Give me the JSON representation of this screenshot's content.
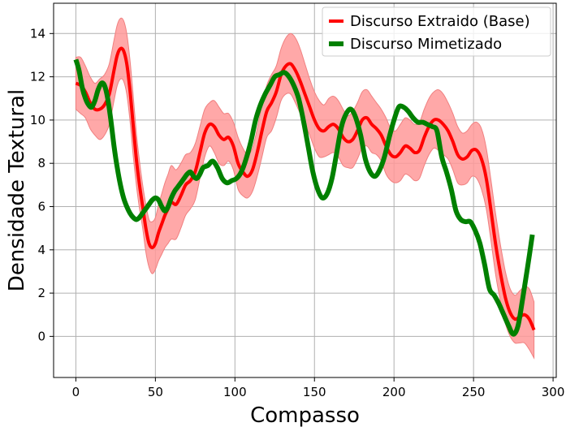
{
  "chart_data": {
    "type": "line",
    "title": "",
    "xlabel": "Compasso",
    "ylabel": "Densidade Textural",
    "xlim": [
      -14,
      302
    ],
    "ylim": [
      -1.9,
      15.4
    ],
    "xticks": [
      0,
      50,
      100,
      150,
      200,
      250,
      300
    ],
    "yticks": [
      0,
      2,
      4,
      6,
      8,
      10,
      12,
      14
    ],
    "grid": true,
    "legend_position": "top-right",
    "colors": {
      "base": "#ff0000",
      "band": "#ff9999",
      "mimetizado": "#008000",
      "grid": "#b0b0b0"
    },
    "series": [
      {
        "name": "Discurso Extraido (Base)",
        "x": [
          0,
          3,
          6,
          9,
          12,
          15,
          18,
          21,
          24,
          26,
          28,
          30,
          32,
          34,
          36,
          38,
          40,
          42,
          44,
          46,
          48,
          50,
          52,
          54,
          56,
          58,
          60,
          63,
          66,
          69,
          72,
          75,
          78,
          81,
          84,
          87,
          90,
          93,
          96,
          99,
          102,
          105,
          108,
          111,
          114,
          117,
          120,
          123,
          126,
          129,
          132,
          135,
          138,
          141,
          144,
          147,
          150,
          153,
          156,
          159,
          162,
          165,
          168,
          171,
          174,
          177,
          180,
          183,
          186,
          189,
          192,
          195,
          198,
          201,
          204,
          207,
          210,
          213,
          216,
          219,
          222,
          225,
          228,
          231,
          234,
          237,
          240,
          243,
          246,
          249,
          252,
          255,
          258,
          261,
          264,
          267,
          270,
          273,
          276,
          279,
          282,
          285,
          288
        ],
        "values": [
          11.7,
          11.6,
          11.3,
          10.8,
          10.5,
          10.5,
          10.7,
          11.2,
          12.3,
          13.0,
          13.3,
          13.2,
          12.6,
          11.4,
          9.8,
          8.2,
          7.0,
          6.0,
          5.0,
          4.3,
          4.1,
          4.3,
          4.8,
          5.2,
          5.6,
          5.9,
          6.2,
          6.1,
          6.5,
          7.0,
          7.2,
          7.6,
          8.5,
          9.4,
          9.8,
          9.7,
          9.3,
          9.1,
          9.2,
          8.8,
          8.0,
          7.6,
          7.4,
          7.7,
          8.5,
          9.5,
          10.4,
          10.8,
          11.3,
          12.1,
          12.5,
          12.6,
          12.3,
          11.8,
          11.2,
          10.6,
          10.0,
          9.6,
          9.5,
          9.7,
          9.8,
          9.6,
          9.2,
          9.0,
          9.1,
          9.5,
          10.0,
          10.1,
          9.8,
          9.6,
          9.3,
          8.8,
          8.4,
          8.3,
          8.5,
          8.8,
          8.7,
          8.5,
          8.6,
          9.2,
          9.7,
          10.0,
          10.0,
          9.8,
          9.5,
          9.0,
          8.4,
          8.2,
          8.3,
          8.6,
          8.6,
          8.2,
          7.3,
          5.8,
          4.2,
          2.9,
          1.8,
          1.1,
          0.8,
          0.9,
          1.0,
          0.8,
          0.3
        ],
        "upper": [
          12.9,
          12.9,
          12.5,
          12.0,
          11.7,
          11.9,
          12.1,
          12.6,
          13.7,
          14.4,
          14.7,
          14.6,
          14.0,
          12.8,
          11.2,
          9.4,
          8.1,
          7.0,
          6.1,
          5.4,
          5.3,
          5.5,
          6.1,
          6.6,
          7.1,
          7.5,
          7.9,
          7.7,
          8.0,
          8.4,
          8.5,
          8.9,
          9.7,
          10.5,
          10.8,
          10.9,
          10.6,
          10.3,
          10.3,
          9.9,
          9.2,
          8.7,
          8.4,
          8.7,
          9.6,
          10.7,
          11.6,
          12.1,
          12.5,
          13.3,
          13.8,
          14.0,
          13.8,
          13.3,
          12.6,
          11.9,
          11.3,
          10.9,
          10.7,
          11.0,
          11.1,
          10.9,
          10.5,
          10.2,
          10.4,
          10.8,
          11.3,
          11.4,
          11.1,
          10.8,
          10.5,
          10.1,
          9.6,
          9.5,
          9.8,
          10.1,
          10.0,
          9.8,
          9.9,
          10.5,
          11.0,
          11.3,
          11.4,
          11.2,
          10.8,
          10.3,
          9.7,
          9.4,
          9.5,
          9.8,
          9.9,
          9.6,
          8.7,
          7.2,
          5.6,
          4.2,
          3.0,
          2.2,
          1.9,
          2.1,
          2.3,
          2.2,
          1.6
        ],
        "lower": [
          10.5,
          10.3,
          10.1,
          9.6,
          9.3,
          9.1,
          9.3,
          9.8,
          10.9,
          11.6,
          11.9,
          11.8,
          11.2,
          10.0,
          8.4,
          7.0,
          5.9,
          5.0,
          3.9,
          3.2,
          2.9,
          3.1,
          3.5,
          3.8,
          4.1,
          4.3,
          4.5,
          4.5,
          5.0,
          5.6,
          5.9,
          6.3,
          7.3,
          8.3,
          8.8,
          8.5,
          8.0,
          7.9,
          8.1,
          7.7,
          6.8,
          6.5,
          6.4,
          6.7,
          7.4,
          8.3,
          9.2,
          9.5,
          10.1,
          10.9,
          11.2,
          11.2,
          10.8,
          10.3,
          9.8,
          9.3,
          8.7,
          8.3,
          8.3,
          8.4,
          8.5,
          8.3,
          7.9,
          7.8,
          7.8,
          8.2,
          8.7,
          8.8,
          8.5,
          8.4,
          8.1,
          7.5,
          7.2,
          7.1,
          7.2,
          7.5,
          7.4,
          7.2,
          7.3,
          7.9,
          8.4,
          8.7,
          8.6,
          8.4,
          8.2,
          7.7,
          7.1,
          7.0,
          7.1,
          7.4,
          7.3,
          6.8,
          5.9,
          4.4,
          2.8,
          1.6,
          0.6,
          0.0,
          -0.3,
          -0.3,
          -0.3,
          -0.6,
          -1.0
        ]
      },
      {
        "name": "Discurso Mimetizado",
        "x": [
          0,
          2,
          4,
          6,
          8,
          10,
          12,
          14,
          16,
          18,
          20,
          22,
          24,
          26,
          28,
          30,
          32,
          34,
          36,
          38,
          40,
          42,
          44,
          46,
          48,
          50,
          52,
          54,
          56,
          58,
          60,
          62,
          64,
          66,
          68,
          70,
          72,
          74,
          76,
          78,
          80,
          83,
          86,
          89,
          92,
          95,
          98,
          101,
          104,
          107,
          110,
          113,
          116,
          119,
          122,
          125,
          128,
          131,
          134,
          137,
          140,
          143,
          146,
          149,
          152,
          155,
          158,
          161,
          164,
          167,
          170,
          173,
          176,
          179,
          182,
          185,
          188,
          191,
          194,
          197,
          200,
          203,
          206,
          209,
          212,
          215,
          218,
          221,
          224,
          227,
          230,
          233,
          236,
          239,
          242,
          245,
          248,
          251,
          254,
          257,
          260,
          263,
          266,
          269,
          272,
          275,
          278,
          281,
          284,
          287
        ],
        "values": [
          12.8,
          12.3,
          11.5,
          11.0,
          10.7,
          10.6,
          10.9,
          11.4,
          11.7,
          11.6,
          11.0,
          10.0,
          8.8,
          7.8,
          7.0,
          6.4,
          6.0,
          5.7,
          5.5,
          5.4,
          5.5,
          5.7,
          5.9,
          6.1,
          6.3,
          6.4,
          6.3,
          6.0,
          5.8,
          6.0,
          6.4,
          6.7,
          6.9,
          7.1,
          7.3,
          7.5,
          7.6,
          7.4,
          7.3,
          7.5,
          7.8,
          7.9,
          8.1,
          7.8,
          7.3,
          7.1,
          7.2,
          7.3,
          7.6,
          8.2,
          9.0,
          10.0,
          10.7,
          11.2,
          11.6,
          12.0,
          12.1,
          12.2,
          12.0,
          11.6,
          11.0,
          10.0,
          8.8,
          7.6,
          6.8,
          6.4,
          6.6,
          7.3,
          8.5,
          9.7,
          10.3,
          10.5,
          10.1,
          9.3,
          8.2,
          7.6,
          7.4,
          7.7,
          8.3,
          9.2,
          10.0,
          10.6,
          10.6,
          10.4,
          10.1,
          9.9,
          9.9,
          9.8,
          9.7,
          9.5,
          8.3,
          7.6,
          6.8,
          5.8,
          5.4,
          5.3,
          5.3,
          4.9,
          4.3,
          3.3,
          2.2,
          1.9,
          1.5,
          1.0,
          0.5,
          0.1,
          0.5,
          1.8,
          3.2,
          4.7
        ]
      }
    ]
  },
  "legend": {
    "items": [
      {
        "label": "Discurso Extraido (Base)",
        "color": "#ff0000"
      },
      {
        "label": "Discurso Mimetizado",
        "color": "#008000"
      }
    ]
  }
}
